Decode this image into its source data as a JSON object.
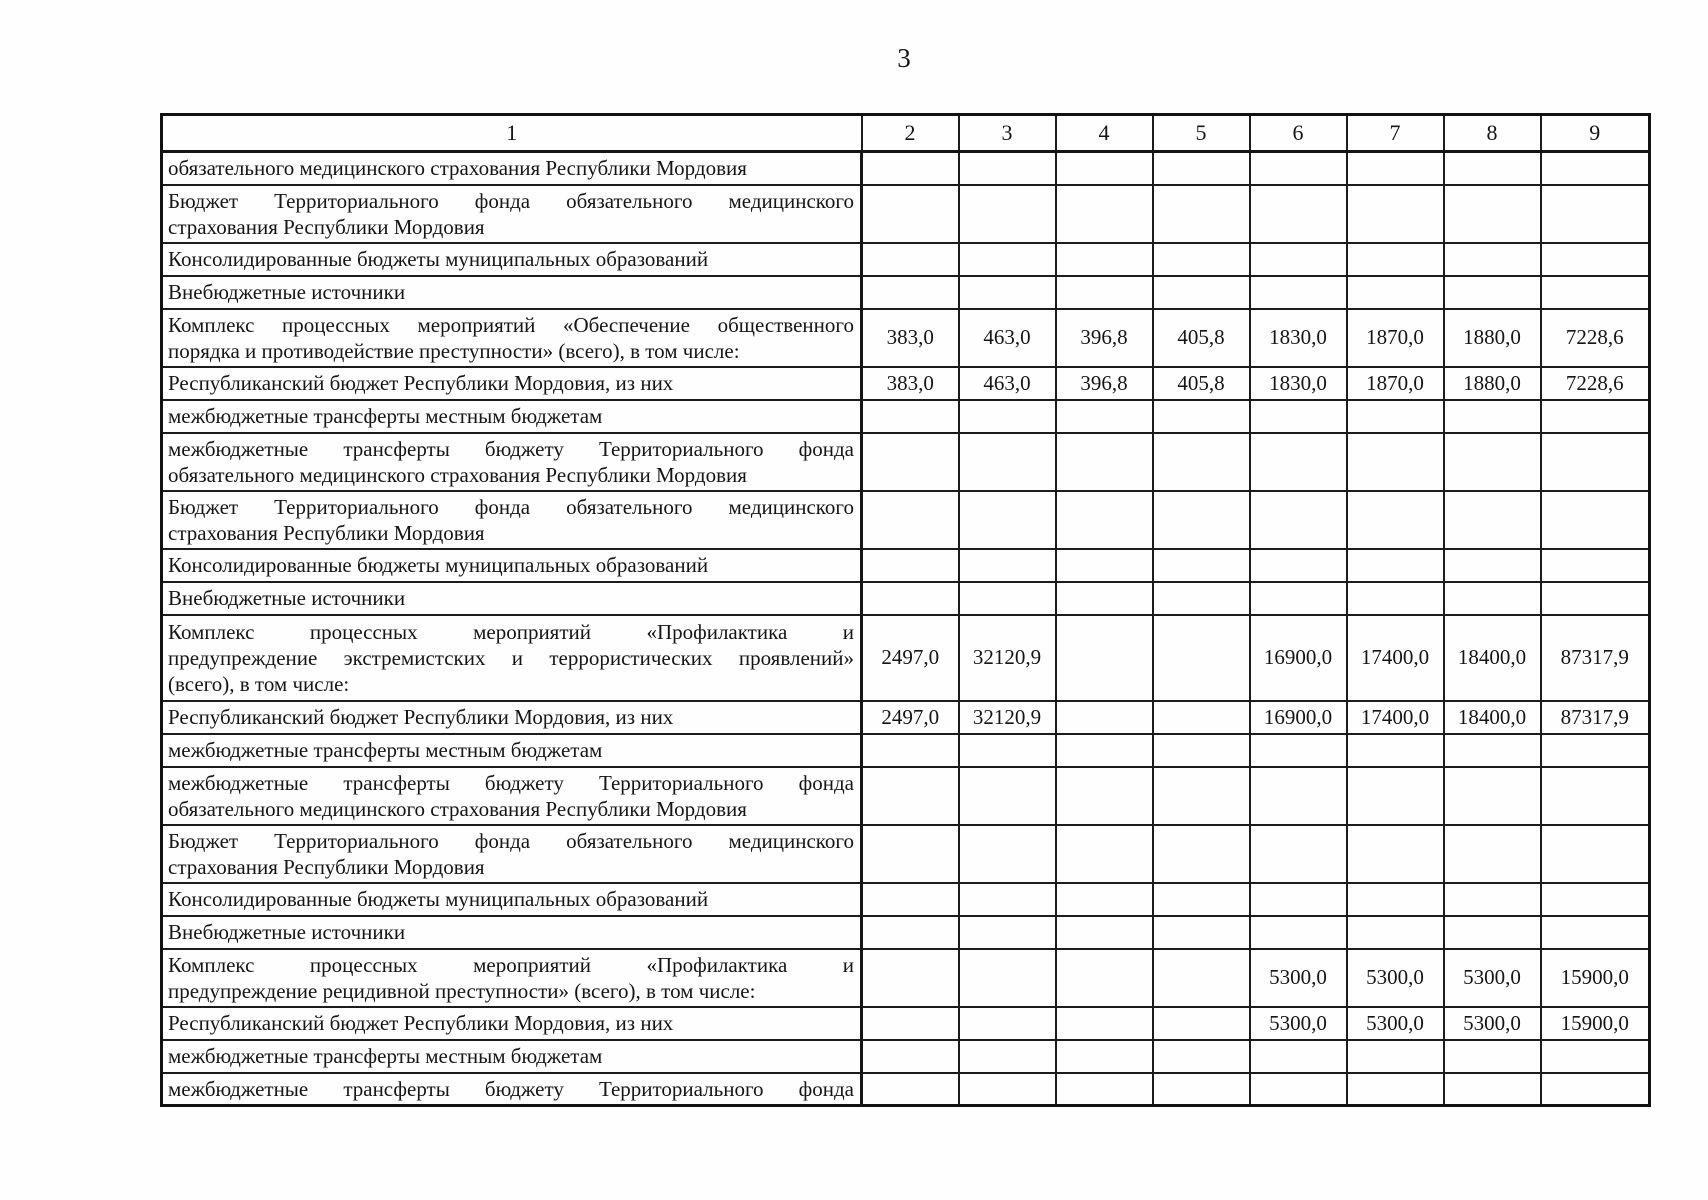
{
  "page": {
    "number": "3"
  },
  "colors": {
    "ink": "#1c1c1c",
    "paper": "#fefefe"
  },
  "table": {
    "header": [
      "1",
      "2",
      "3",
      "4",
      "5",
      "6",
      "7",
      "8",
      "9"
    ],
    "rows": [
      {
        "label_lines": [
          "обязательного медицинского страхования Республики Мордовия"
        ],
        "values": [
          "",
          "",
          "",
          "",
          "",
          "",
          "",
          ""
        ]
      },
      {
        "label_lines": [
          "Бюджет Территориального фонда обязательного медицинского",
          "страхования Республики Мордовия"
        ],
        "values": [
          "",
          "",
          "",
          "",
          "",
          "",
          "",
          ""
        ]
      },
      {
        "label_lines": [
          "Консолидированные бюджеты муниципальных образований"
        ],
        "values": [
          "",
          "",
          "",
          "",
          "",
          "",
          "",
          ""
        ]
      },
      {
        "label_lines": [
          "Внебюджетные источники"
        ],
        "values": [
          "",
          "",
          "",
          "",
          "",
          "",
          "",
          ""
        ]
      },
      {
        "label_lines": [
          "Комплекс процессных мероприятий «Обеспечение общественного",
          "порядка и противодействие преступности» (всего), в том числе:"
        ],
        "values": [
          "383,0",
          "463,0",
          "396,8",
          "405,8",
          "1830,0",
          "1870,0",
          "1880,0",
          "7228,6"
        ]
      },
      {
        "label_lines": [
          "Республиканский бюджет Республики Мордовия, из них"
        ],
        "values": [
          "383,0",
          "463,0",
          "396,8",
          "405,8",
          "1830,0",
          "1870,0",
          "1880,0",
          "7228,6"
        ]
      },
      {
        "label_lines": [
          "межбюджетные трансферты местным бюджетам"
        ],
        "values": [
          "",
          "",
          "",
          "",
          "",
          "",
          "",
          ""
        ]
      },
      {
        "label_lines": [
          "межбюджетные трансферты бюджету Территориального фонда",
          "обязательного медицинского страхования Республики Мордовия"
        ],
        "values": [
          "",
          "",
          "",
          "",
          "",
          "",
          "",
          ""
        ]
      },
      {
        "label_lines": [
          "Бюджет Территориального фонда обязательного медицинского",
          "страхования Республики Мордовия"
        ],
        "values": [
          "",
          "",
          "",
          "",
          "",
          "",
          "",
          ""
        ]
      },
      {
        "label_lines": [
          "Консолидированные бюджеты муниципальных образований"
        ],
        "values": [
          "",
          "",
          "",
          "",
          "",
          "",
          "",
          ""
        ]
      },
      {
        "label_lines": [
          "Внебюджетные источники"
        ],
        "values": [
          "",
          "",
          "",
          "",
          "",
          "",
          "",
          ""
        ]
      },
      {
        "label_lines": [
          "Комплекс процессных мероприятий «Профилактика и",
          "предупреждение экстремистских и террористических проявлений»",
          "(всего), в том числе:"
        ],
        "values": [
          "2497,0",
          "32120,9",
          "",
          "",
          "16900,0",
          "17400,0",
          "18400,0",
          "87317,9"
        ]
      },
      {
        "label_lines": [
          "Республиканский бюджет Республики Мордовия, из них"
        ],
        "values": [
          "2497,0",
          "32120,9",
          "",
          "",
          "16900,0",
          "17400,0",
          "18400,0",
          "87317,9"
        ]
      },
      {
        "label_lines": [
          "межбюджетные трансферты местным бюджетам"
        ],
        "values": [
          "",
          "",
          "",
          "",
          "",
          "",
          "",
          ""
        ]
      },
      {
        "label_lines": [
          "межбюджетные трансферты бюджету Территориального фонда",
          "обязательного медицинского страхования Республики Мордовия"
        ],
        "values": [
          "",
          "",
          "",
          "",
          "",
          "",
          "",
          ""
        ]
      },
      {
        "label_lines": [
          "Бюджет Территориального фонда обязательного медицинского",
          "страхования Республики Мордовия"
        ],
        "values": [
          "",
          "",
          "",
          "",
          "",
          "",
          "",
          ""
        ]
      },
      {
        "label_lines": [
          "Консолидированные бюджеты муниципальных образований"
        ],
        "values": [
          "",
          "",
          "",
          "",
          "",
          "",
          "",
          ""
        ]
      },
      {
        "label_lines": [
          "Внебюджетные источники"
        ],
        "values": [
          "",
          "",
          "",
          "",
          "",
          "",
          "",
          ""
        ]
      },
      {
        "label_lines": [
          "Комплекс процессных мероприятий «Профилактика и",
          "предупреждение рецидивной преступности» (всего), в том числе:"
        ],
        "values": [
          "",
          "",
          "",
          "",
          "5300,0",
          "5300,0",
          "5300,0",
          "15900,0"
        ]
      },
      {
        "label_lines": [
          "Республиканский бюджет Республики Мордовия, из них"
        ],
        "values": [
          "",
          "",
          "",
          "",
          "5300,0",
          "5300,0",
          "5300,0",
          "15900,0"
        ]
      },
      {
        "label_lines": [
          "межбюджетные трансферты местным бюджетам"
        ],
        "values": [
          "",
          "",
          "",
          "",
          "",
          "",
          "",
          ""
        ]
      },
      {
        "label_lines": [
          "межбюджетные трансферты бюджету Территориального фонда"
        ],
        "justify_last": true,
        "values": [
          "",
          "",
          "",
          "",
          "",
          "",
          "",
          ""
        ]
      }
    ]
  }
}
